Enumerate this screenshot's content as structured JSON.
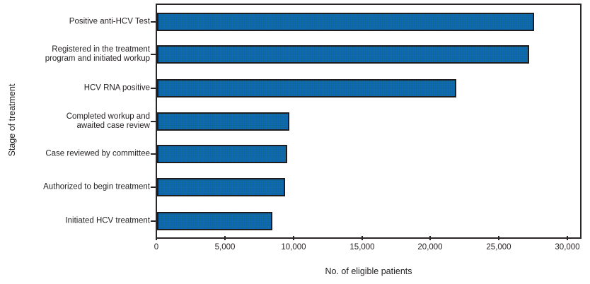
{
  "figure": {
    "y_axis_title": "Stage of treatment",
    "x_axis_title": "No. of eligible patients"
  },
  "chart_data": {
    "type": "bar",
    "orientation": "horizontal",
    "title": "",
    "xlabel": "No. of eligible patients",
    "ylabel": "Stage of treatment",
    "categories": [
      "Positive anti-HCV Test",
      "Registered in the treatment program and initiated workup",
      "HCV RNA positive",
      "Completed workup and awaited case review",
      "Case reviewed by committee",
      "Authorized to begin treatment",
      "Initiated HCV treatment"
    ],
    "category_lines": [
      [
        "Positive anti-HCV Test"
      ],
      [
        "Registered in the treatment",
        "program and initiated  workup"
      ],
      [
        "HCV RNA positive"
      ],
      [
        "Completed workup and",
        "awaited case review"
      ],
      [
        "Case reviewed by committee"
      ],
      [
        "Authorized to begin treatment"
      ],
      [
        "Initiated HCV treatment"
      ]
    ],
    "values": [
      27595,
      27195,
      21916,
      9709,
      9541,
      9410,
      8448
    ],
    "x_ticks": [
      0,
      5000,
      10000,
      15000,
      20000,
      25000,
      30000
    ],
    "x_tick_labels": [
      "0",
      "5,000",
      "10,000",
      "15,000",
      "20,000",
      "25,000",
      "30,000"
    ],
    "xlim": [
      0,
      30900
    ],
    "grid": false,
    "legend": "none",
    "bar_color": "#0e6bbd",
    "bar_border_color": "#1d1b1b",
    "frame_color": "#2a2526",
    "text_color": "#231f20"
  }
}
